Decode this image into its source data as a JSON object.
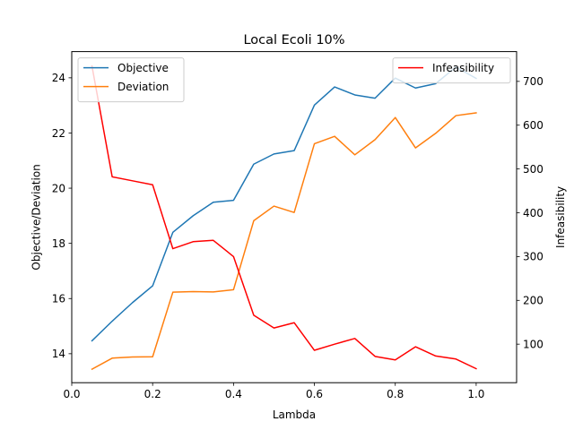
{
  "chart_data": {
    "type": "line",
    "title": "Local Ecoli 10%",
    "xlabel": "Lambda",
    "ylabel_left": "Objective/Deviation",
    "ylabel_right": "Infeasibility",
    "xlim": [
      0.0,
      1.1
    ],
    "ylim_left": [
      12.95,
      24.95
    ],
    "ylim_right": [
      12,
      768
    ],
    "xticks": [
      0.0,
      0.2,
      0.4,
      0.6,
      0.8,
      1.0
    ],
    "xtick_labels": [
      "0.0",
      "0.2",
      "0.4",
      "0.6",
      "0.8",
      "1.0"
    ],
    "yticks_left": [
      14,
      16,
      18,
      20,
      22,
      24
    ],
    "yticks_right": [
      100,
      200,
      300,
      400,
      500,
      600,
      700
    ],
    "x": [
      0.05,
      0.1,
      0.15,
      0.2,
      0.25,
      0.3,
      0.35,
      0.4,
      0.45,
      0.5,
      0.55,
      0.6,
      0.65,
      0.7,
      0.75,
      0.8,
      0.85,
      0.9,
      0.95,
      1.0
    ],
    "series": [
      {
        "name": "Objective",
        "axis": "left",
        "color": "#1f77b4",
        "values": [
          14.47,
          15.18,
          15.85,
          16.46,
          18.4,
          19.0,
          19.49,
          19.56,
          20.87,
          21.24,
          21.36,
          23.01,
          23.67,
          23.38,
          23.26,
          23.99,
          23.63,
          23.79,
          24.39,
          23.98
        ]
      },
      {
        "name": "Deviation",
        "axis": "left",
        "color": "#ff7f0e",
        "values": [
          13.44,
          13.84,
          13.88,
          13.89,
          16.23,
          16.25,
          16.24,
          16.32,
          18.82,
          19.35,
          19.12,
          21.61,
          21.88,
          21.21,
          21.76,
          22.56,
          21.46,
          21.99,
          22.63,
          22.73
        ]
      },
      {
        "name": "Infeasibility",
        "axis": "right",
        "color": "#ff0000",
        "values": [
          735,
          482,
          473,
          464,
          318,
          334,
          337,
          300,
          166,
          137,
          149,
          86,
          100,
          113,
          72,
          64,
          94,
          73,
          66,
          44
        ]
      }
    ],
    "legend_left": "upper left",
    "legend_right": "upper right",
    "grid": false
  }
}
